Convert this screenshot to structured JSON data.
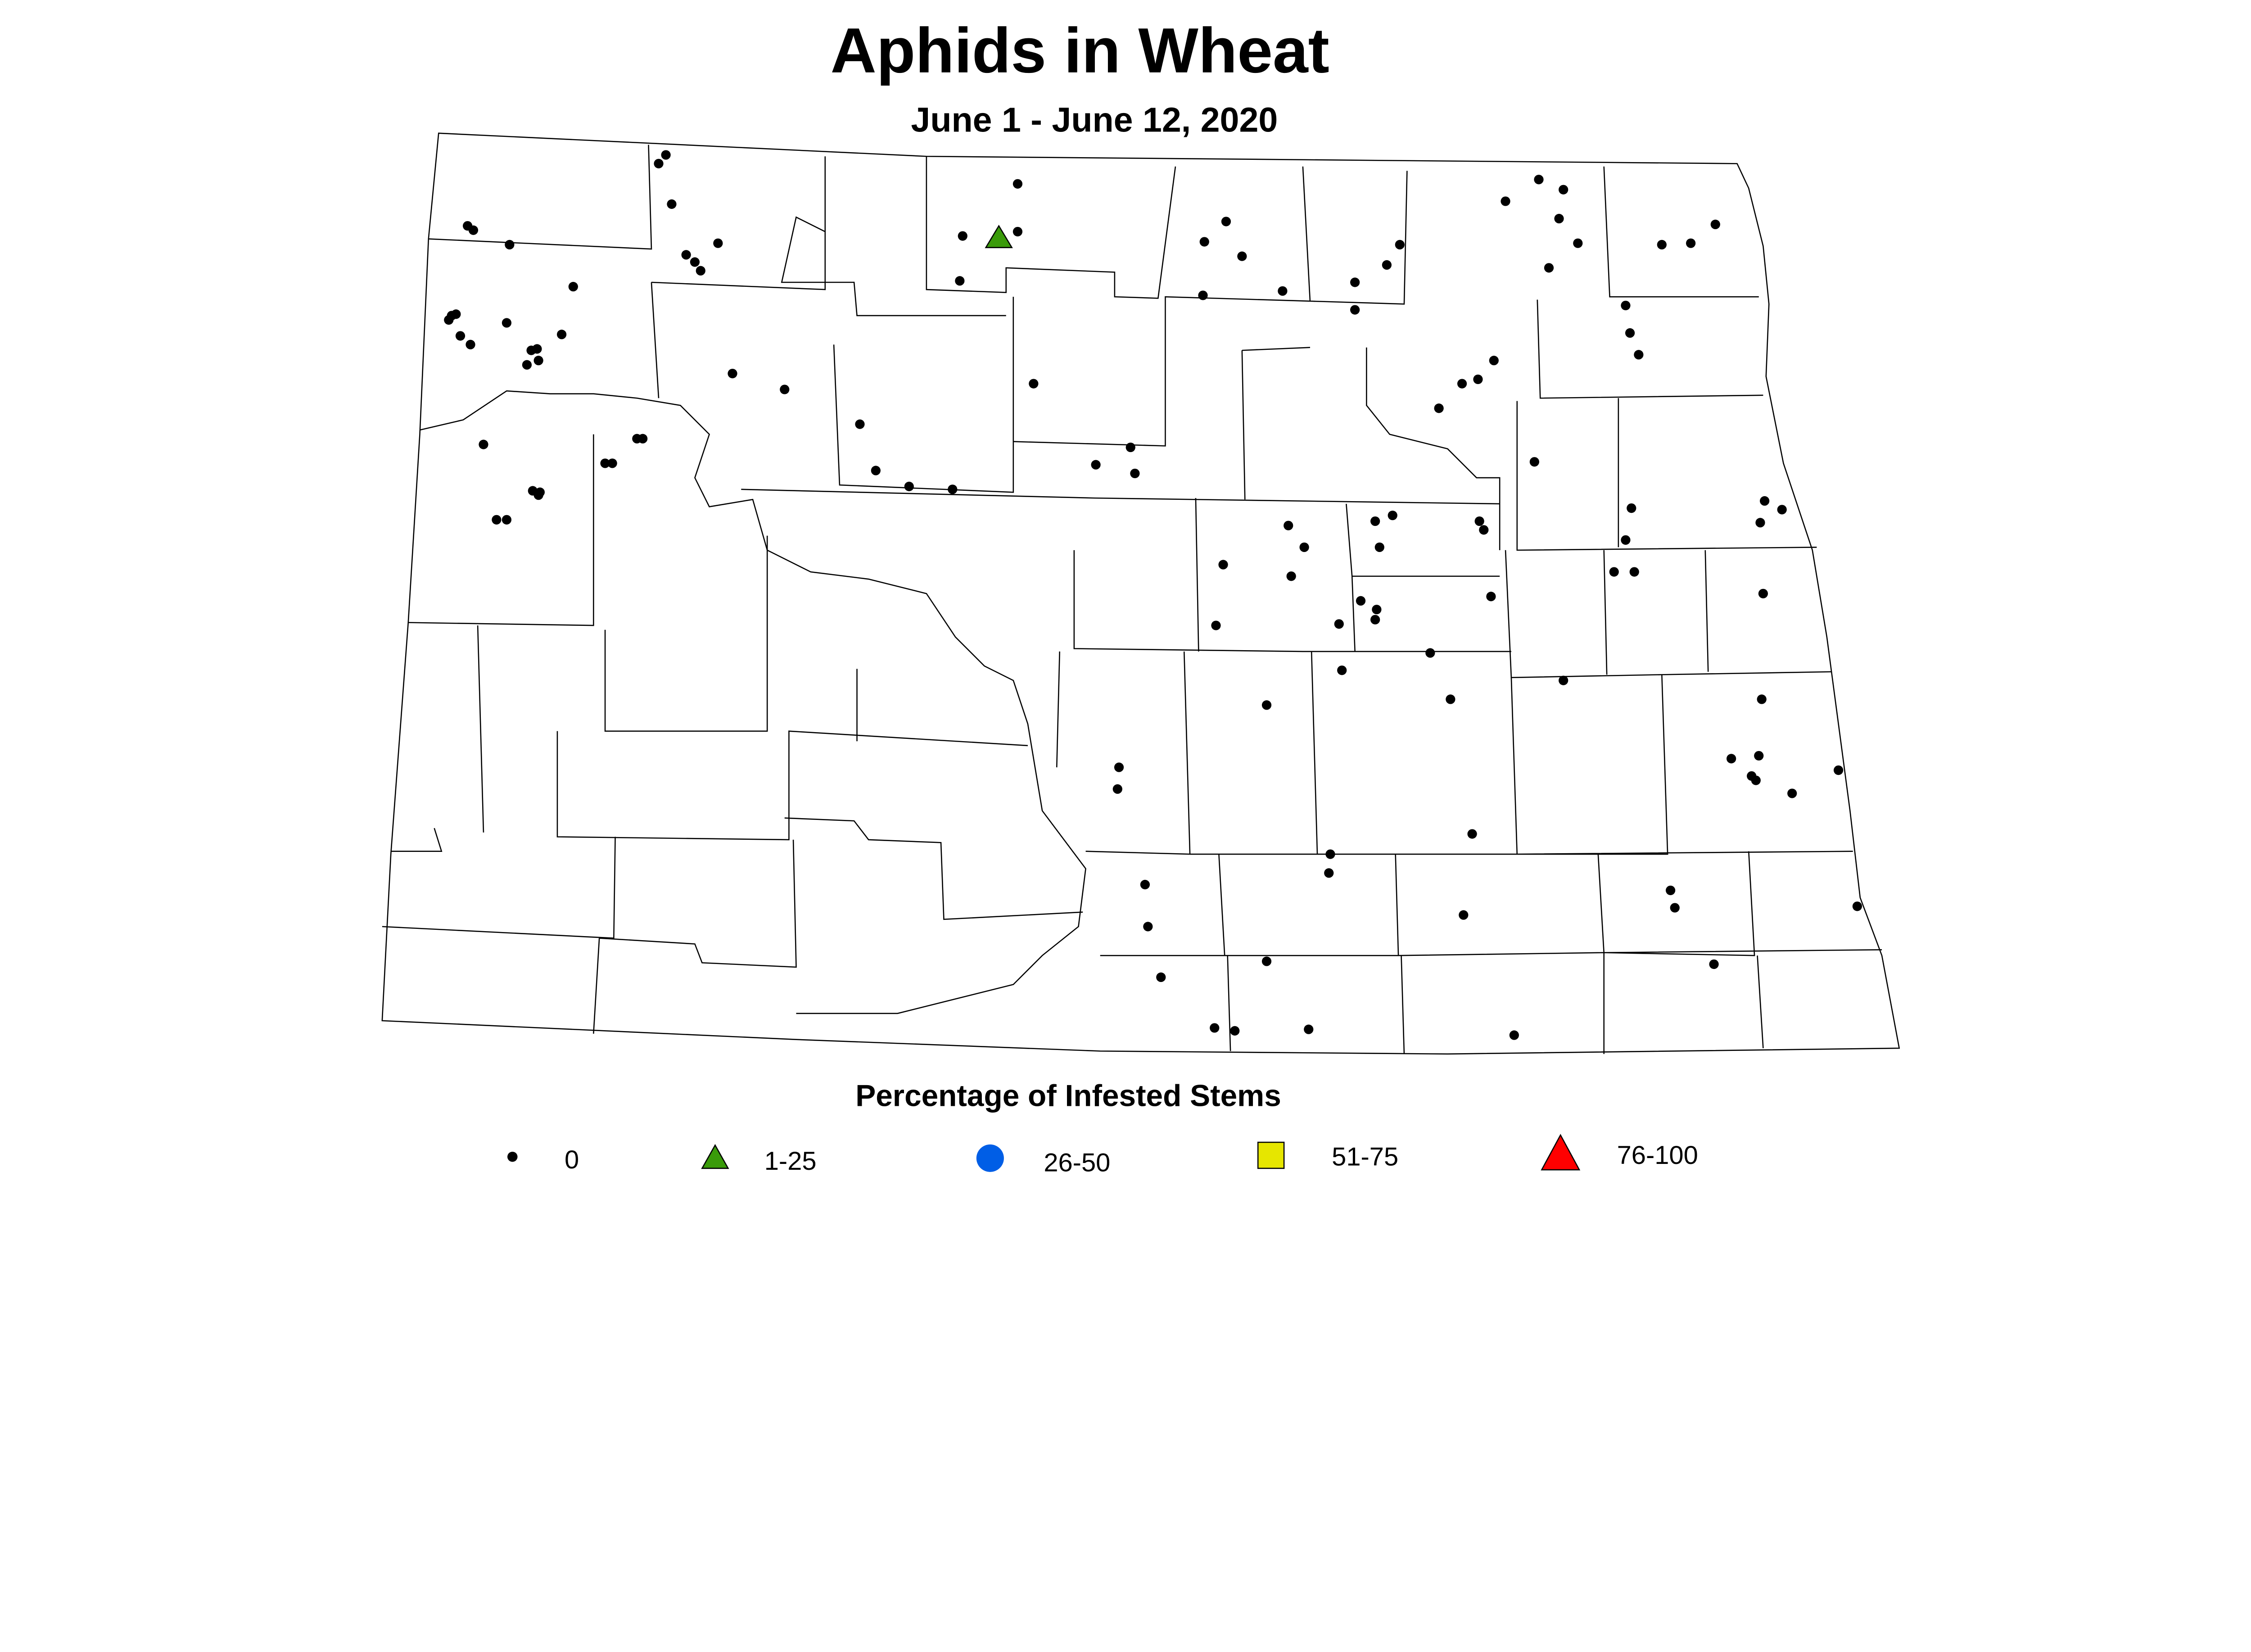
{
  "title": "Aphids in Wheat",
  "subtitle": "June 1 - June 12, 2020",
  "legend": {
    "title": "Percentage of Infested Stems",
    "items": [
      {
        "label": "0",
        "symbol": "small-dot",
        "color": "#000000"
      },
      {
        "label": "1-25",
        "symbol": "triangle",
        "color": "#3a9b0a"
      },
      {
        "label": "26-50",
        "symbol": "circle",
        "color": "#005ee6"
      },
      {
        "label": "51-75",
        "symbol": "square",
        "color": "#e6e600"
      },
      {
        "label": "76-100",
        "symbol": "triangle-large",
        "color": "#ff0000"
      }
    ]
  },
  "map": {
    "region": "North Dakota counties",
    "sites_category_0": "most sites",
    "sites_category_1_25": 1
  }
}
